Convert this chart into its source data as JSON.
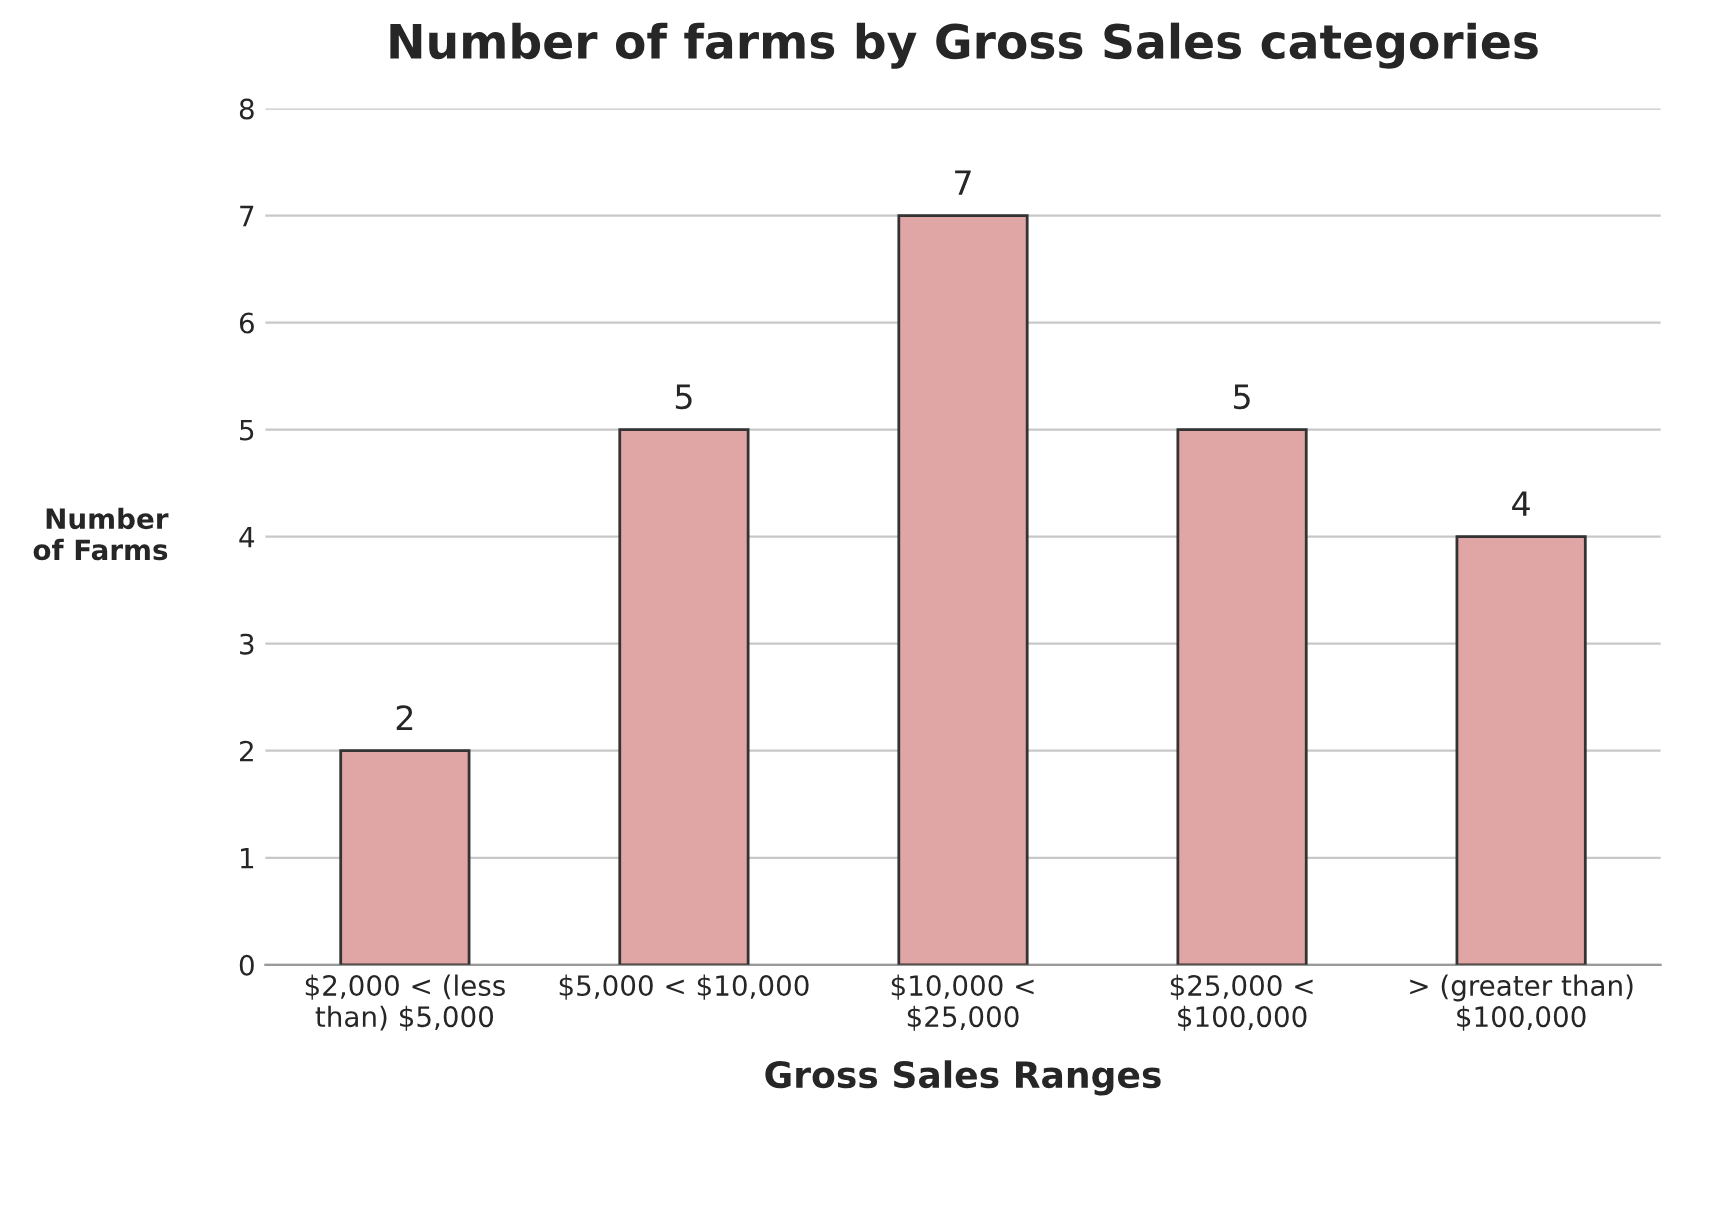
{
  "chart_data": {
    "type": "bar",
    "title": "Number of farms by Gross Sales categories",
    "xlabel": "Gross Sales Ranges",
    "ylabel": "Number\nof Farms",
    "categories": [
      "$2,000 < (less\nthan) $5,000",
      "$5,000 < $10,000",
      "$10,000 <\n$25,000",
      "$25,000 <\n$100,000",
      "> (greater than)\n$100,000"
    ],
    "values": [
      2,
      5,
      7,
      5,
      4
    ],
    "color": "#e0a6a5",
    "ylim": [
      0,
      8
    ],
    "yticks": [
      0,
      1,
      2,
      3,
      4,
      5,
      6,
      7,
      8
    ],
    "grid": "y",
    "data_labels": true
  }
}
